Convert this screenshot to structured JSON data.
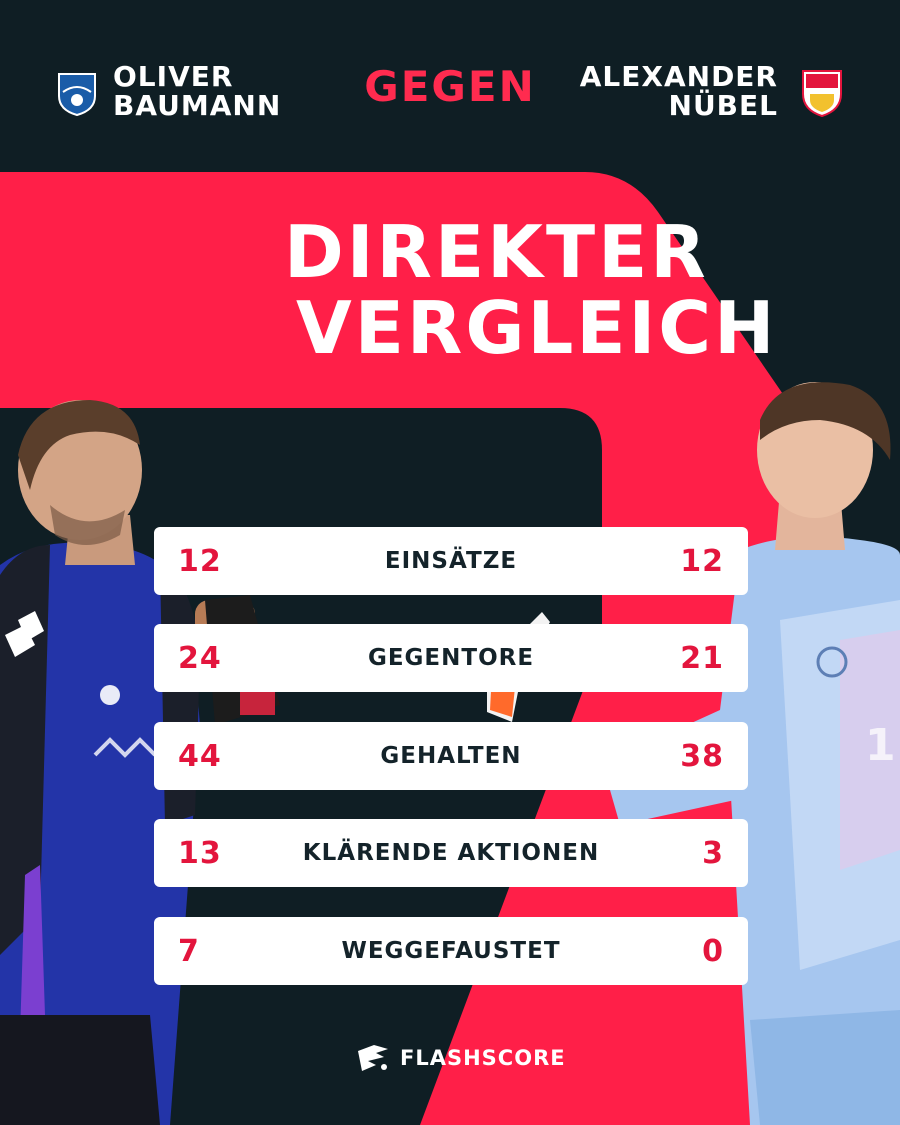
{
  "header": {
    "left_player": {
      "first_name": "OLIVER",
      "last_name": "BAUMANN",
      "club_crest": "hoffenheim-crest-icon"
    },
    "versus_label": "GEGEN",
    "right_player": {
      "first_name": "ALEXANDER",
      "last_name": "NÜBEL",
      "club_crest": "vfb-stuttgart-crest-icon"
    }
  },
  "title": {
    "line1": "DIREKTER",
    "line2": "VERGLEICH"
  },
  "stats": [
    {
      "left": "12",
      "label": "EINSÄTZE",
      "right": "12"
    },
    {
      "left": "24",
      "label": "GEGENTORE",
      "right": "21"
    },
    {
      "left": "44",
      "label": "GEHALTEN",
      "right": "38"
    },
    {
      "left": "13",
      "label": "KLÄRENDE AKTIONEN",
      "right": "3"
    },
    {
      "left": "7",
      "label": "WEGGEFAUSTET",
      "right": "0"
    }
  ],
  "brand": {
    "name": "FLASHSCORE",
    "logo": "flashscore-logo-icon"
  },
  "colors": {
    "background": "#0f1e24",
    "accent": "#ff1f48",
    "stat_value": "#e3153d",
    "card": "#ffffff"
  }
}
